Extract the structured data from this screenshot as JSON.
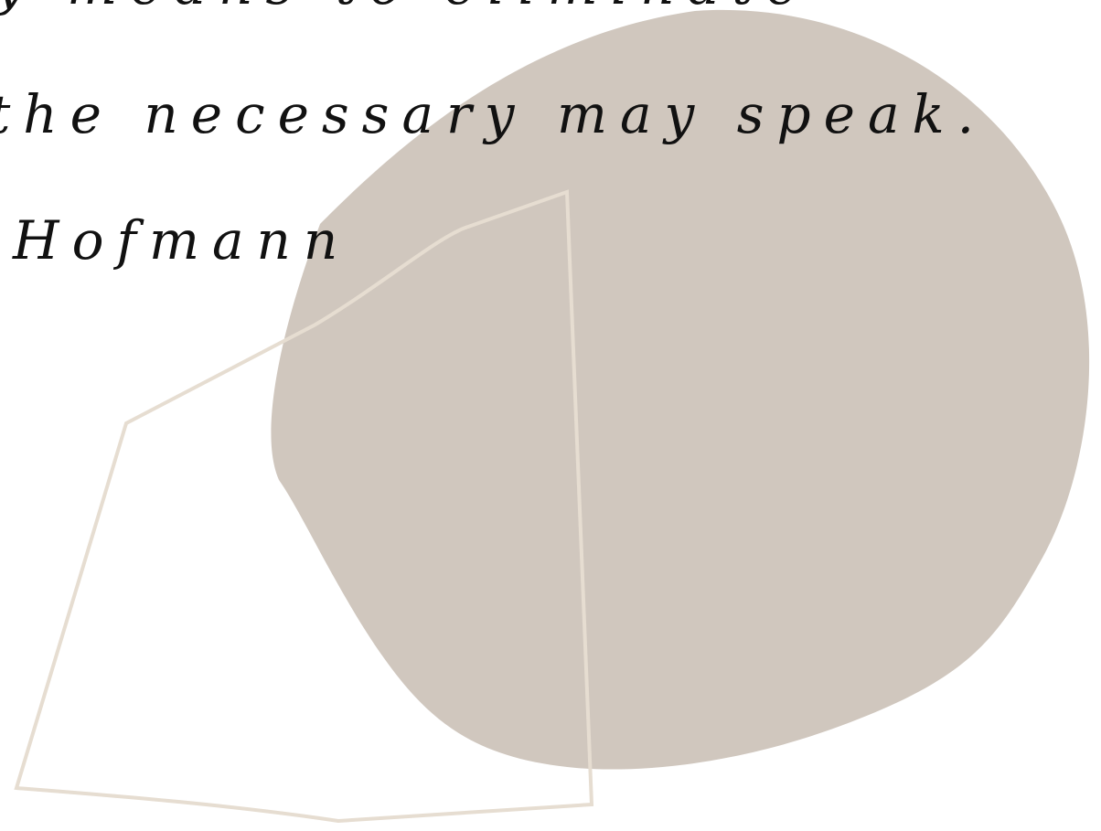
{
  "quote": {
    "lines": [
      "y means to eliminate",
      "the necessary may speak."
    ]
  },
  "attribution": "Hofmann"
}
